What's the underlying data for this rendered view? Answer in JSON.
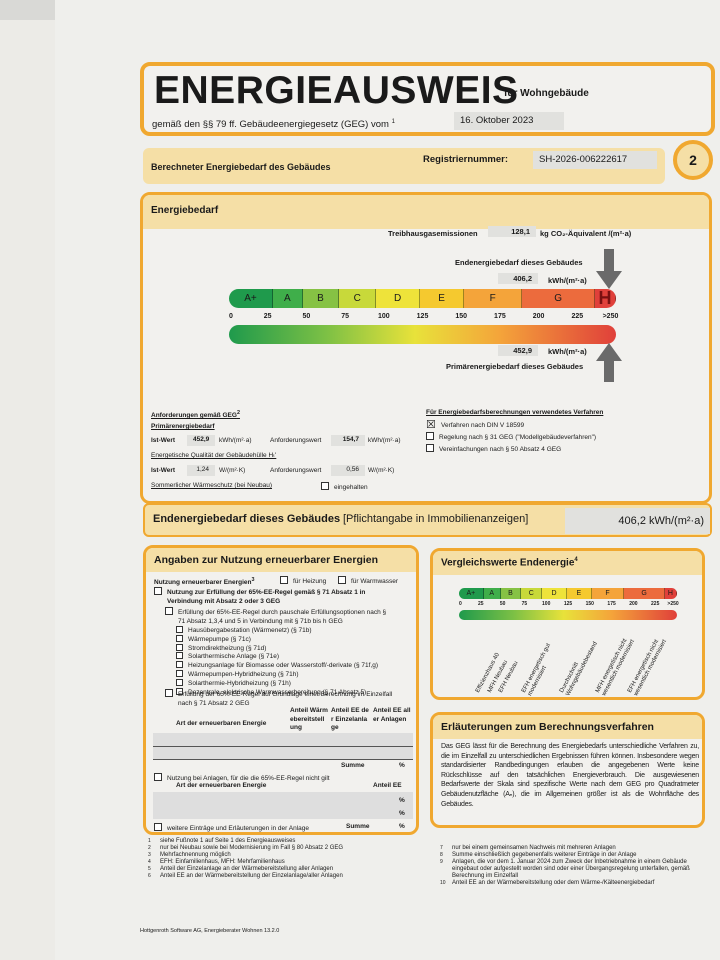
{
  "header": {
    "title": "ENERGIEAUSWEIS",
    "subtitle": "für Wohngebäude",
    "law": "gemäß den §§ 79 ff. Gebäudeenergiegesetz (GEG) vom",
    "law_sup": "1",
    "date": "16. Oktober 2023"
  },
  "regbar": {
    "label": "Berechneter Energiebedarf des Gebäudes",
    "reg_label": "Registriernummer:",
    "reg_value": "SH-2026-006222617",
    "page": "2"
  },
  "energiebedarf": {
    "title": "Energiebedarf",
    "ghg_label": "Treibhausgasemissionen",
    "ghg_value": "128,1",
    "ghg_unit": "kg CO₂-Äquivalent /(m²·a)",
    "end_label": "Endenergiebedarf dieses Gebäudes",
    "end_value": "406,2",
    "end_unit": "kWh/(m²·a)",
    "prim_value": "452,9",
    "prim_unit": "kWh/(m²·a)",
    "prim_label": "Primärenergiebedarf dieses Gebäudes",
    "classes": [
      "A+",
      "A",
      "B",
      "C",
      "D",
      "E",
      "F",
      "G",
      "H"
    ],
    "class_colors": [
      "#1f9a4c",
      "#3fae4a",
      "#86c244",
      "#c8d93a",
      "#eee33a",
      "#f5c92f",
      "#f4a43a",
      "#ec6b3d",
      "#e0403a"
    ],
    "current_class": "H",
    "ticks": [
      "0",
      "25",
      "50",
      "75",
      "100",
      "125",
      "150",
      "175",
      "200",
      "225",
      ">250"
    ]
  },
  "requirements": {
    "title": "Anforderungen gemäß GEG",
    "title_sup": "2",
    "prim_title": "Primärenergiebedarf",
    "ist_label": "Ist-Wert",
    "prim_ist": "452,9",
    "prim_unit": "kWh/(m²·a)",
    "anf_label": "Anforderungswert",
    "prim_anf": "154,7",
    "h_title": "Energetische Qualität der Gebäudehülle Hₜ'",
    "h_ist": "1,24",
    "h_unit": "W/(m²·K)",
    "h_anf": "0,56",
    "summer_label": "Sommerlicher Wärmeschutz (bei Neubau)",
    "summer_check": "eingehalten"
  },
  "method": {
    "title": "Für Energiebedarfsberechnungen verwendetes Verfahren",
    "options": [
      {
        "label": "Verfahren nach DIN V 18599",
        "checked": true
      },
      {
        "label": "Regelung nach § 31 GEG (\"Modellgebäudeverfahren\")",
        "checked": false
      },
      {
        "label": "Vereinfachungen nach § 50 Absatz 4 GEG",
        "checked": false
      }
    ]
  },
  "endbar": {
    "label": "Endenergiebedarf dieses Gebäudes",
    "note": "[Pflichtangabe in Immobilienanzeigen]",
    "value": "406,2 kWh/(m²·a)"
  },
  "renewable": {
    "title": "Angaben zur Nutzung erneuerbarer Energien",
    "use_label": "Nutzung erneuerbarer Energien",
    "use_sup": "3",
    "heat": "für Heizung",
    "water": "für Warmwasser",
    "rule1": "Nutzung zur Erfüllung der 65%-EE-Regel gemäß § 71 Absatz 1 in Verbindung mit Absatz 2 oder 3 GEG",
    "rule1a": "Erfüllung der 65%-EE-Regel durch pauschale Erfüllungsoptionen nach § 71 Absatz 1,3,4 und 5 in Verbindung mit § 71b bis h GEG",
    "options": [
      "Hausübergabestation (Wärmenetz) (§ 71b)",
      "Wärmepumpe (§ 71c)",
      "Stromdirektheizung (§ 71d)",
      "Solarthermische Anlage (§ 71e)",
      "Heizungsanlage für Biomasse oder Wasserstoff/-derivate (§ 71f,g)",
      "Wärmepumpen-Hybridheizung (§ 71h)",
      "Solarthermie-Hybridheizung (§ 71h)",
      "Dezentrale, elektrische Warmwasserbereitung (§ 71 Absatz 5)"
    ],
    "rule1b": "Erfüllung der 65%-EE-Regel auf Grundlage einer Berechnung im Einzelfall nach § 71 Absatz 2 GEG",
    "col_type": "Art der erneuerbaren Energie",
    "col1": "Anteil Wärmebereitstellung",
    "col2": "Anteil EE der Einzelanlage",
    "col3": "Anteil EE aller Anlagen",
    "sum": "Summe",
    "pct": "%",
    "rule2": "Nutzung bei Anlagen, für die die 65%-EE-Regel nicht gilt",
    "col4": "Anteil EE",
    "more": "weitere Einträge und Erläuterungen in der Anlage"
  },
  "compare": {
    "title": "Vergleichswerte Endenergie",
    "title_sup": "4",
    "labels": [
      "Effizienzhaus 40",
      "MFH Neubau",
      "EFH Neubau",
      "EFH energetisch gut modernisiert",
      "Durchschnitt Wohngebäudebestand",
      "MFH energetisch nicht wesentlich modernisiert",
      "EFH energetisch nicht wesentlich modernisiert"
    ]
  },
  "explain": {
    "title": "Erläuterungen zum Berechnungsverfahren",
    "text": "Das GEG lässt für die Berechnung des Energiebedarfs unterschiedliche Verfahren zu, die im Einzelfall zu unterschiedlichen Ergebnissen führen können. Insbesondere wegen standardisierter Randbedingungen erlauben die angegebenen Werte keine Rückschlüsse auf den tatsächlichen Energieverbrauch. Die ausgewiesenen Bedarfswerte der Skala sind spezifische Werte nach dem GEG pro Quadratmeter Gebäudenutzfläche (Aₙ), die im Allgemeinen größer ist als die Wohnfläche des Gebäudes."
  },
  "footnotes_left": [
    "siehe Fußnote 1 auf Seite 1 des Energieausweises",
    "nur bei Neubau sowie bei Modernisierung im Fall § 80 Absatz 2 GEG",
    "Mehrfachnennung möglich",
    "EFH: Einfamilienhaus, MFH: Mehrfamilienhaus",
    "Anteil der Einzelanlage an der Wärmebereitstellung aller Anlagen",
    "Anteil EE an der Wärmebereitstellung der Einzelanlage/aller Anlagen"
  ],
  "footnotes_right": [
    "nur bei einem gemeinsamen Nachweis mit mehreren Anlagen",
    "Summe einschließlich gegebenenfalls weiterer Einträge in der Anlage",
    "Anlagen, die vor dem 1. Januar 2024 zum Zweck der Inbetriebnahme in einem Gebäude eingebaut oder aufgestellt worden sind oder einer Übergangsregelung unterfallen, gemäß Berechnung im Einzelfall",
    "Anteil EE an der Wärmebereitstellung oder dem Wärme-/Kälteenergiebedarf"
  ],
  "footer": "Hottgenroth Software AG, Energieberater Wohnen 13.2.0"
}
